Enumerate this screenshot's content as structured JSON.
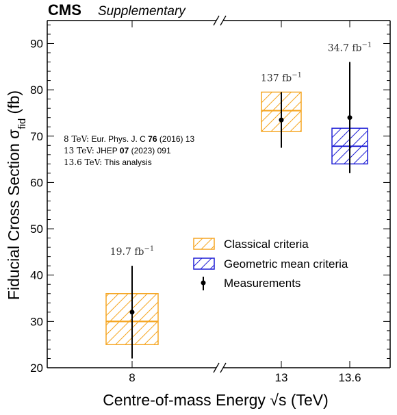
{
  "chart_data": {
    "type": "scatter",
    "header": {
      "experiment": "CMS",
      "tag": "Supplementary"
    },
    "xlabel": "Centre-of-mass Energy",
    "xlabel_symbol": "√s",
    "xlabel_unit": "(TeV)",
    "ylabel": "Fiducial Cross Section σ",
    "ylabel_sub": "fid",
    "ylabel_unit": "(fb)",
    "ylim": [
      20,
      95
    ],
    "yticks": [
      20,
      30,
      40,
      50,
      60,
      70,
      80,
      90
    ],
    "x_ticks": [
      "8",
      "13",
      "13.6"
    ],
    "axis_break": true,
    "grid": false,
    "legend_placement": "center-right",
    "legend": {
      "classical": "Classical criteria",
      "geometric": "Geometric mean criteria",
      "measurements": "Measurements"
    },
    "references": [
      {
        "energy": "8 TeV:",
        "text_before": "Eur. Phys. J. C ",
        "bold": "76",
        "text_after": " (2016) 13"
      },
      {
        "energy": "13 TeV:",
        "text_before": "JHEP ",
        "bold": "07",
        "text_after": " (2023) 091"
      },
      {
        "energy": "13.6 TeV:",
        "text_before": "This analysis",
        "bold": "",
        "text_after": ""
      }
    ],
    "series": [
      {
        "name": "Classical criteria",
        "color": "#f5a623",
        "hatch": "dense",
        "points": [
          {
            "x": "8",
            "center": 30.0,
            "low": 25.0,
            "high": 36.0
          },
          {
            "x": "13",
            "center": 75.5,
            "low": 71.0,
            "high": 79.5
          }
        ]
      },
      {
        "name": "Geometric mean criteria",
        "color": "#1f1fd6",
        "hatch": "dense",
        "points": [
          {
            "x": "13.6",
            "center": 67.8,
            "low": 64.0,
            "high": 71.7
          }
        ]
      },
      {
        "name": "Measurements",
        "color": "#000000",
        "points": [
          {
            "x": "8",
            "y": 32.0,
            "err_low": 22.0,
            "err_high": 42.0,
            "lumi": "19.7 fb",
            "lumi_exp": "−1"
          },
          {
            "x": "13",
            "y": 73.5,
            "err_low": 67.5,
            "err_high": 79.5,
            "lumi": "137 fb",
            "lumi_exp": "−1"
          },
          {
            "x": "13.6",
            "y": 74.0,
            "err_low": 62.0,
            "err_high": 86.0,
            "lumi": "34.7 fb",
            "lumi_exp": "−1"
          }
        ]
      }
    ]
  }
}
